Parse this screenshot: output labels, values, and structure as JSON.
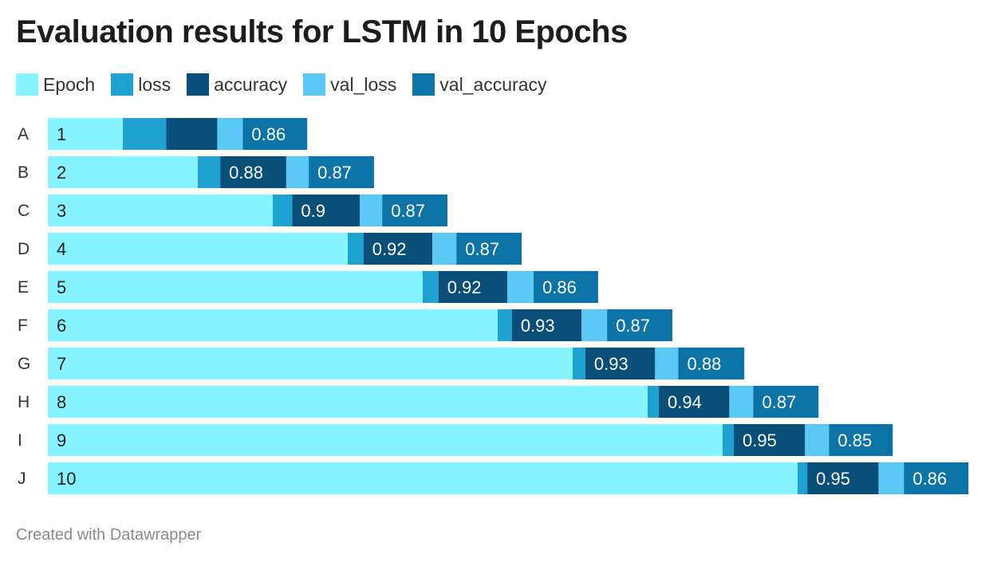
{
  "chart_data": {
    "type": "bar",
    "orientation": "horizontal",
    "stacked": true,
    "title": "Evaluation results for LSTM in 10 Epochs",
    "categories": [
      "A",
      "B",
      "C",
      "D",
      "E",
      "F",
      "G",
      "H",
      "I",
      "J"
    ],
    "series": [
      {
        "name": "Epoch",
        "color": "#88f4ff",
        "values": [
          1,
          2,
          3,
          4,
          5,
          6,
          7,
          8,
          9,
          10
        ],
        "labels": [
          "1",
          "2",
          "3",
          "4",
          "5",
          "6",
          "7",
          "8",
          "9",
          "10"
        ]
      },
      {
        "name": "loss",
        "color": "#1fa2d1",
        "values": [
          0.58,
          0.3,
          0.26,
          0.21,
          0.21,
          0.19,
          0.17,
          0.15,
          0.15,
          0.13
        ],
        "labels": [
          "",
          "",
          "",
          "",
          "",
          "",
          "",
          "",
          "",
          ""
        ]
      },
      {
        "name": "accuracy",
        "color": "#0a4f7a",
        "values": [
          0.68,
          0.88,
          0.9,
          0.92,
          0.92,
          0.93,
          0.93,
          0.94,
          0.95,
          0.95
        ],
        "labels": [
          "",
          "0.88",
          "0.9",
          "0.92",
          "0.92",
          "0.93",
          "0.93",
          "0.94",
          "0.95",
          "0.95"
        ]
      },
      {
        "name": "val_loss",
        "color": "#5bc8f5",
        "values": [
          0.34,
          0.3,
          0.3,
          0.32,
          0.35,
          0.34,
          0.31,
          0.32,
          0.32,
          0.34
        ],
        "labels": [
          "",
          "",
          "",
          "",
          "",
          "",
          "",
          "",
          "",
          ""
        ]
      },
      {
        "name": "val_accuracy",
        "color": "#0c73a6",
        "values": [
          0.86,
          0.87,
          0.87,
          0.87,
          0.86,
          0.87,
          0.88,
          0.87,
          0.85,
          0.86
        ],
        "labels": [
          "0.86",
          "0.87",
          "0.87",
          "0.87",
          "0.86",
          "0.87",
          "0.88",
          "0.87",
          "0.85",
          "0.86"
        ]
      }
    ],
    "xlim": [
      0,
      12.32
    ],
    "label_colors": {
      "light": "#222222",
      "dark": "#ffffff"
    }
  },
  "footer": "Created with Datawrapper"
}
